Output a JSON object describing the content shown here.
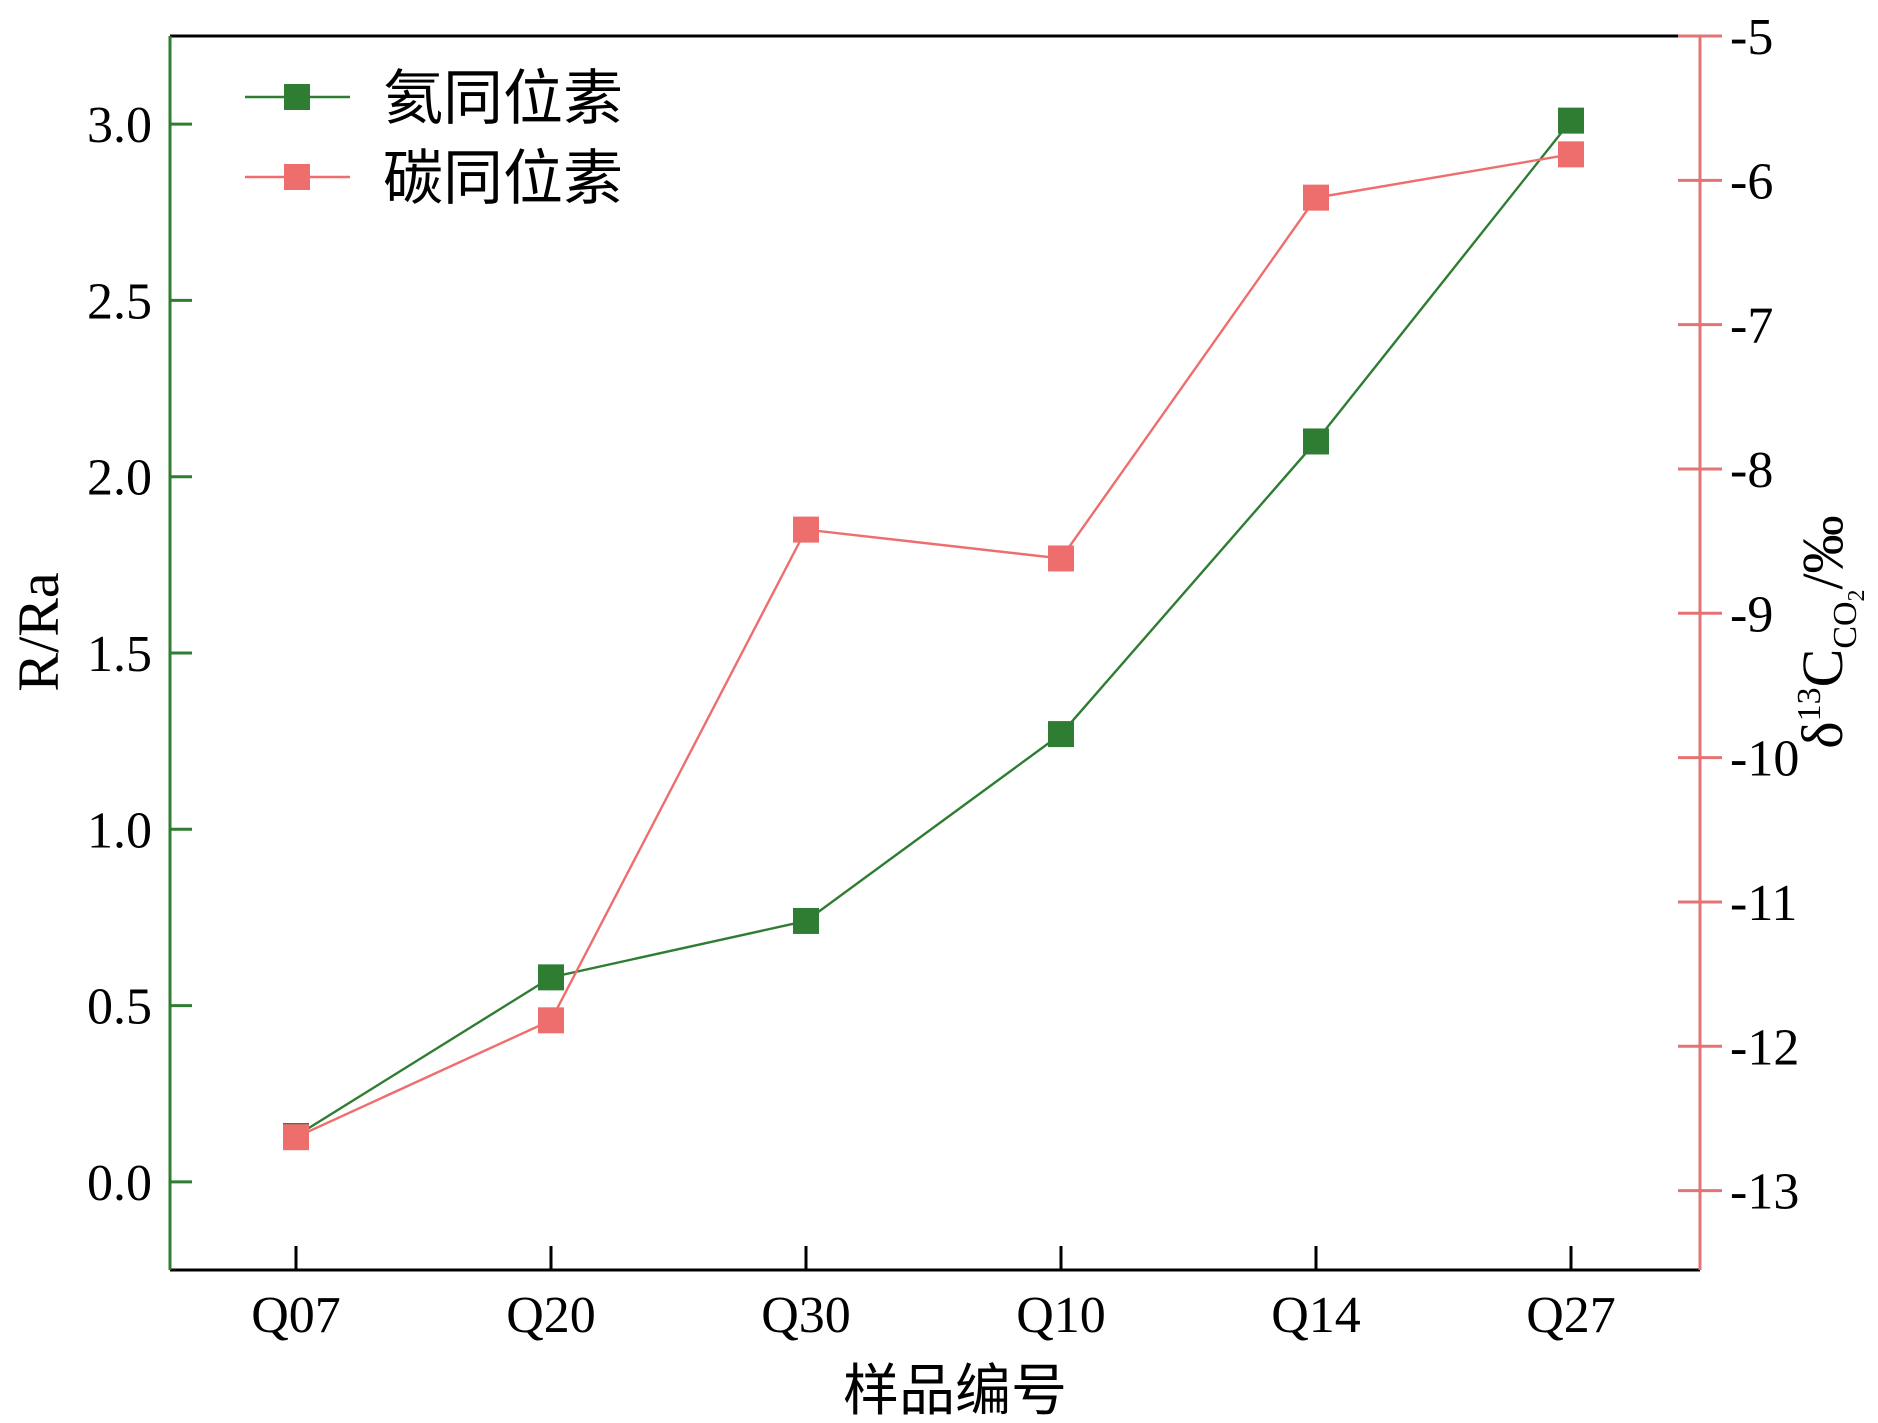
{
  "chart_data": {
    "type": "line",
    "categories": [
      "Q07",
      "Q20",
      "Q30",
      "Q10",
      "Q14",
      "Q27"
    ],
    "xlabel": "样品编号",
    "ylabel_left": "R/Ra",
    "ylabel_right": {
      "prefix": "δ",
      "superscript": "13",
      "main": "C",
      "subscript": "CO",
      "subscript2": "2",
      "suffix": "/‰"
    },
    "left_axis": {
      "range": [
        -0.25,
        3.25
      ],
      "ticks": [
        0.0,
        0.5,
        1.0,
        1.5,
        2.0,
        2.5,
        3.0
      ],
      "tick_labels": [
        "0.0",
        "0.5",
        "1.0",
        "1.5",
        "2.0",
        "2.5",
        "3.0"
      ],
      "color": "#2e7d32"
    },
    "right_axis": {
      "range": [
        -13.55,
        -5.0
      ],
      "ticks": [
        -5,
        -6,
        -7,
        -8,
        -9,
        -10,
        -11,
        -12,
        -13
      ],
      "tick_labels": [
        "-5",
        "-6",
        "-7",
        "-8",
        "-9",
        "-10",
        "-11",
        "-12",
        "-13"
      ],
      "color": "#e57373"
    },
    "series": [
      {
        "name": "氦同位素",
        "axis": "left",
        "color": "#2e7d32",
        "marker": "square",
        "values": [
          0.13,
          0.58,
          0.74,
          1.27,
          2.1,
          3.01
        ]
      },
      {
        "name": "碳同位素",
        "axis": "right",
        "color": "#ee6e6e",
        "marker": "square",
        "values": [
          -12.63,
          -11.82,
          -8.42,
          -8.62,
          -6.12,
          -5.82
        ]
      }
    ],
    "legend_position": "top-left",
    "grid": false
  }
}
